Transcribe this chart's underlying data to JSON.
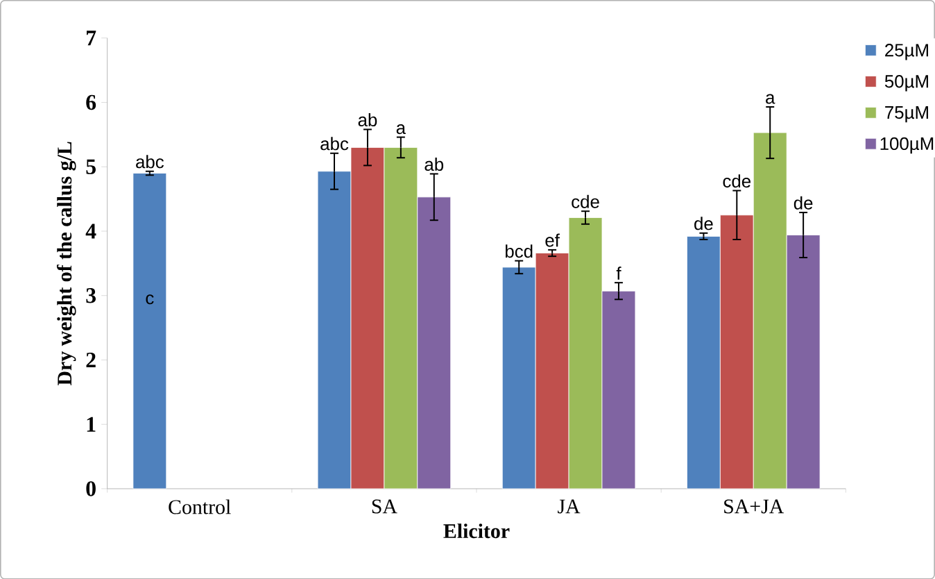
{
  "chart_data": {
    "type": "bar",
    "xlabel": "Elicitor",
    "ylabel": "Dry weight of the callus g/L",
    "categories": [
      "Control",
      "SA",
      "JA",
      "SA+JA"
    ],
    "series": [
      {
        "name": "25µM",
        "color": "#4f81bd",
        "values": [
          4.9,
          4.93,
          3.44,
          3.92
        ],
        "errors": [
          0.03,
          0.28,
          0.1,
          0.05
        ],
        "value_labels": [
          "abc",
          "abc",
          "bcd",
          "de"
        ]
      },
      {
        "name": "50µM",
        "color": "#c0504d",
        "values": [
          null,
          5.3,
          3.66,
          4.25
        ],
        "errors": [
          null,
          0.28,
          0.05,
          0.38
        ],
        "value_labels": [
          null,
          "ab",
          "ef",
          "cde"
        ]
      },
      {
        "name": "75µM",
        "color": "#9bbb59",
        "values": [
          null,
          5.3,
          4.21,
          5.53
        ],
        "errors": [
          null,
          0.16,
          0.1,
          0.4
        ],
        "value_labels": [
          null,
          "a",
          "cde",
          "a"
        ]
      },
      {
        "name": "100µM",
        "color": "#8064a2",
        "values": [
          null,
          4.53,
          3.07,
          3.94
        ],
        "errors": [
          null,
          0.36,
          0.13,
          0.35
        ],
        "value_labels": [
          null,
          "ab",
          "f",
          "de"
        ]
      }
    ],
    "annotations": [
      "c"
    ],
    "ylim": [
      0,
      7
    ],
    "yticks": [
      0,
      1,
      2,
      3,
      4,
      5,
      6,
      7
    ],
    "legend": "top right",
    "grid": false
  }
}
